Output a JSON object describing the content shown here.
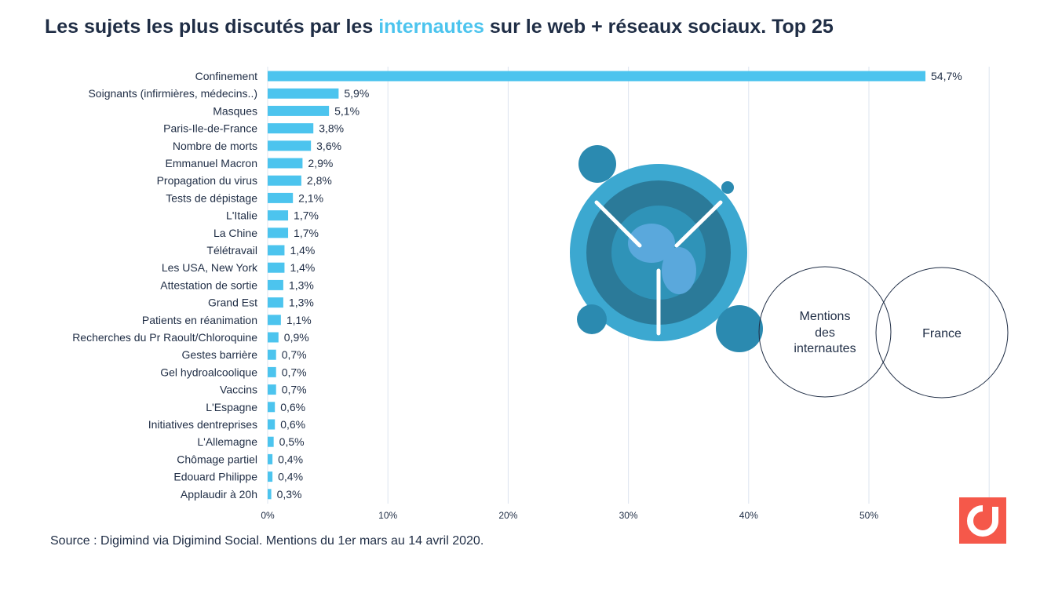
{
  "title": {
    "before": "Les sujets les plus discutés par les ",
    "highlight": "internautes",
    "after": " sur le web + réseaux sociaux. Top  25"
  },
  "source": "Source : Digimind via Digimind Social. Mentions du 1er mars au 14 avril 2020.",
  "venn": {
    "left": [
      "Mentions",
      "des",
      "internautes"
    ],
    "right": "France"
  },
  "colors": {
    "bar": "#4cc4ee",
    "text": "#1f2d45",
    "highlight": "#4cc4ee",
    "logo": "#f5584a"
  },
  "chart_data": {
    "type": "bar",
    "orientation": "horizontal",
    "categories": [
      "Confinement",
      "Soignants (infirmières, médecins..)",
      "Masques",
      "Paris-Ile-de-France",
      "Nombre de morts",
      "Emmanuel Macron",
      "Propagation du virus",
      "Tests de dépistage",
      "L'Italie",
      "La Chine",
      "Télétravail",
      "Les USA, New York",
      "Attestation de sortie",
      "Grand Est",
      "Patients en réanimation",
      "Recherches du Pr Raoult/Chloroquine",
      "Gestes barrière",
      "Gel hydroalcoolique",
      "Vaccins",
      "L'Espagne",
      "Initiatives dentreprises",
      "L'Allemagne",
      "Chômage partiel",
      "Edouard Philippe",
      "Applaudir à 20h"
    ],
    "values": [
      54.7,
      5.9,
      5.1,
      3.8,
      3.6,
      2.9,
      2.8,
      2.1,
      1.7,
      1.7,
      1.4,
      1.4,
      1.3,
      1.3,
      1.1,
      0.9,
      0.7,
      0.7,
      0.7,
      0.6,
      0.6,
      0.5,
      0.4,
      0.4,
      0.3
    ],
    "data_labels": [
      "54,7%",
      "5,9%",
      "5,1%",
      "3,8%",
      "3,6%",
      "2,9%",
      "2,8%",
      "2,1%",
      "1,7%",
      "1,7%",
      "1,4%",
      "1,4%",
      "1,3%",
      "1,3%",
      "1,1%",
      "0,9%",
      "0,7%",
      "0,7%",
      "0,7%",
      "0,6%",
      "0,6%",
      "0,5%",
      "0,4%",
      "0,4%",
      "0,3%"
    ],
    "xticks": [
      "0%",
      "10%",
      "20%",
      "30%",
      "40%",
      "50%"
    ],
    "xlim": [
      0,
      60
    ],
    "grid": true,
    "xlabel": "",
    "ylabel": ""
  }
}
